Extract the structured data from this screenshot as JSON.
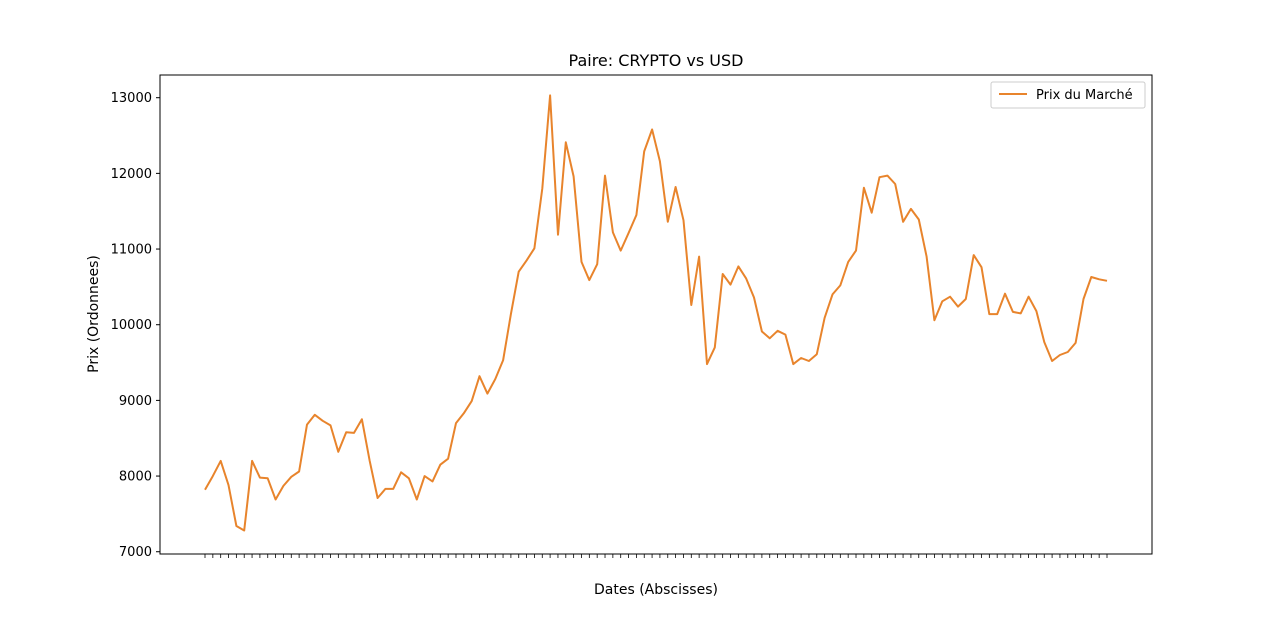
{
  "chart_data": {
    "type": "line",
    "title": "Paire: CRYPTO vs USD",
    "xlabel": "Dates (Abscisses)",
    "ylabel": "Prix (Ordonnees)",
    "ylim": [
      6970,
      13300
    ],
    "yticks": [
      7000,
      8000,
      9000,
      10000,
      11000,
      12000,
      13000
    ],
    "x_tick_note": "dense overlapping date labels (unreadable)",
    "legend": {
      "position": "top-right"
    },
    "series": [
      {
        "name": "Prix du Marché",
        "color": "#e8842c",
        "values": [
          7820,
          8000,
          8200,
          7880,
          7340,
          7280,
          8200,
          7980,
          7970,
          7690,
          7870,
          7990,
          8060,
          8680,
          8810,
          8730,
          8670,
          8320,
          8580,
          8570,
          8750,
          8200,
          7710,
          7830,
          7830,
          8050,
          7970,
          7690,
          8000,
          7930,
          8150,
          8230,
          8700,
          8830,
          8990,
          9320,
          9090,
          9280,
          9530,
          10140,
          10700,
          10850,
          11010,
          11800,
          13030,
          11190,
          12410,
          11960,
          10830,
          10590,
          10800,
          11970,
          11220,
          10980,
          11210,
          11450,
          12290,
          12580,
          12160,
          11360,
          11820,
          11380,
          10260,
          10900,
          9480,
          9700,
          10670,
          10530,
          10770,
          10610,
          10360,
          9910,
          9820,
          9920,
          9870,
          9480,
          9560,
          9520,
          9610,
          10090,
          10400,
          10520,
          10830,
          10980,
          11810,
          11480,
          11950,
          11970,
          11860,
          11360,
          11530,
          11390,
          10900,
          10060,
          10310,
          10370,
          10240,
          10340,
          10920,
          10760,
          10140,
          10140,
          10410,
          10170,
          10150,
          10370,
          10180,
          9770,
          9520,
          9600,
          9640,
          9760,
          10340,
          10630,
          10600,
          10580
        ]
      }
    ]
  }
}
